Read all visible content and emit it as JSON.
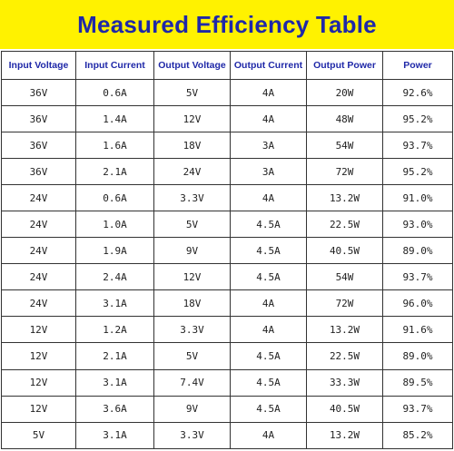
{
  "title": "Measured Efficiency Table",
  "columns": [
    "Input Voltage",
    "Input Current",
    "Output Voltage",
    "Output Current",
    "Output Power",
    "Power"
  ],
  "rows": [
    [
      "36V",
      "0.6A",
      "5V",
      "4A",
      "20W",
      "92.6%"
    ],
    [
      "36V",
      "1.4A",
      "12V",
      "4A",
      "48W",
      "95.2%"
    ],
    [
      "36V",
      "1.6A",
      "18V",
      "3A",
      "54W",
      "93.7%"
    ],
    [
      "36V",
      "2.1A",
      "24V",
      "3A",
      "72W",
      "95.2%"
    ],
    [
      "24V",
      "0.6A",
      "3.3V",
      "4A",
      "13.2W",
      "91.0%"
    ],
    [
      "24V",
      "1.0A",
      "5V",
      "4.5A",
      "22.5W",
      "93.0%"
    ],
    [
      "24V",
      "1.9A",
      "9V",
      "4.5A",
      "40.5W",
      "89.0%"
    ],
    [
      "24V",
      "2.4A",
      "12V",
      "4.5A",
      "54W",
      "93.7%"
    ],
    [
      "24V",
      "3.1A",
      "18V",
      "4A",
      "72W",
      "96.0%"
    ],
    [
      "12V",
      "1.2A",
      "3.3V",
      "4A",
      "13.2W",
      "91.6%"
    ],
    [
      "12V",
      "2.1A",
      "5V",
      "4.5A",
      "22.5W",
      "89.0%"
    ],
    [
      "12V",
      "3.1A",
      "7.4V",
      "4.5A",
      "33.3W",
      "89.5%"
    ],
    [
      "12V",
      "3.6A",
      "9V",
      "4.5A",
      "40.5W",
      "93.7%"
    ],
    [
      "5V",
      "3.1A",
      "3.3V",
      "4A",
      "13.2W",
      "85.2%"
    ]
  ],
  "colors": {
    "banner_background": "#fff200",
    "title_text": "#1f28a8",
    "header_text": "#1f28a8",
    "cell_text": "#222222",
    "grid_lines": "#333333"
  }
}
